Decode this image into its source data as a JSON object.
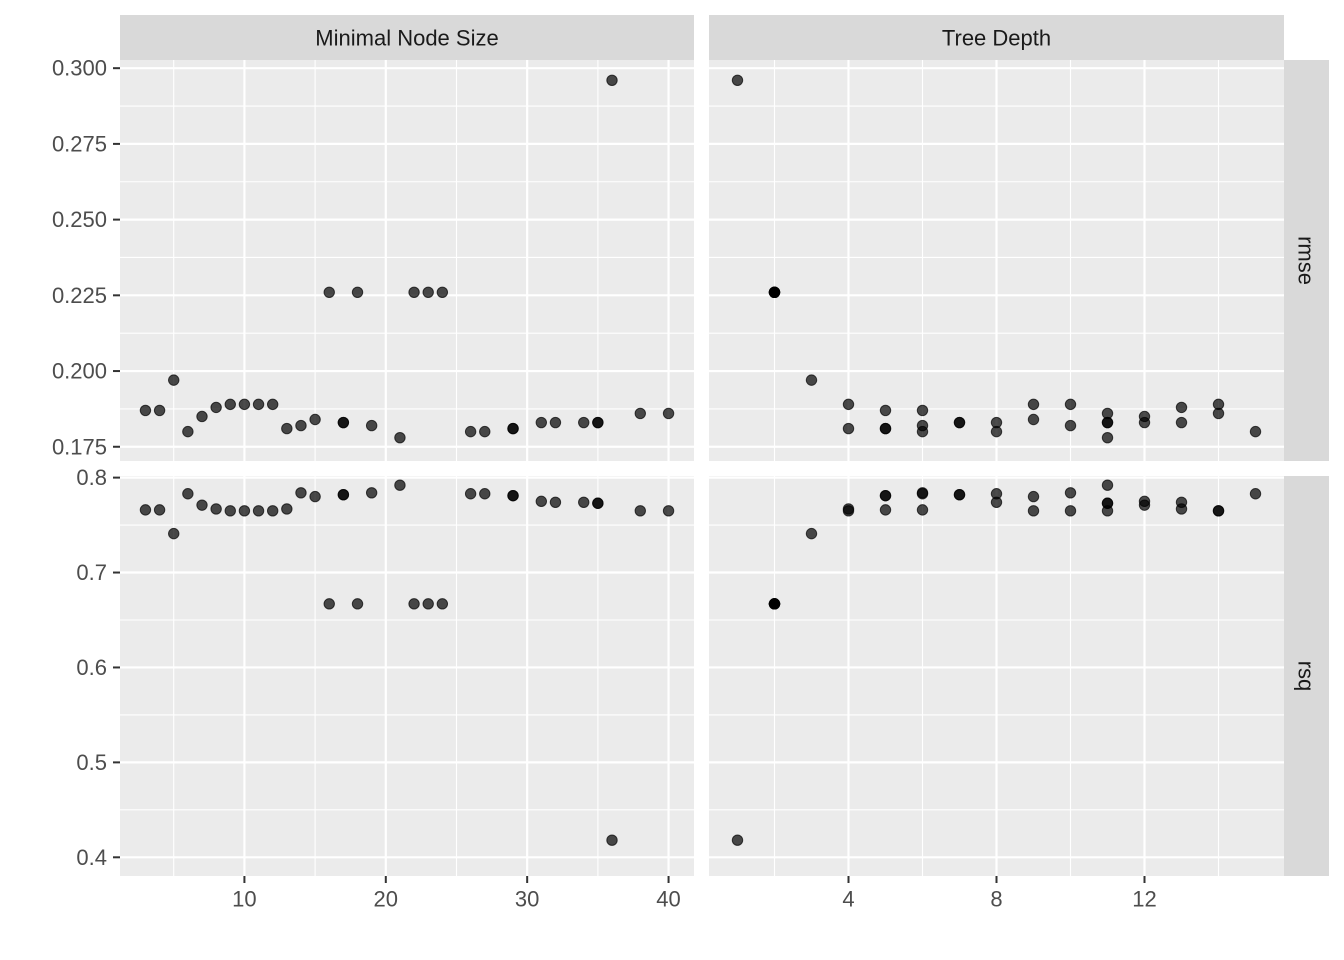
{
  "chart_data": {
    "type": "scatter",
    "layout": "facet-grid",
    "title": "",
    "xlabel": "",
    "ylabel": "",
    "grid": true,
    "columns": [
      {
        "key": "min_n",
        "label": "Minimal Node Size",
        "xlim": [
          1.2,
          41.8
        ],
        "xticks": [
          10,
          20,
          30,
          40
        ]
      },
      {
        "key": "tree_depth",
        "label": "Tree Depth",
        "xlim": [
          0.23,
          15.77
        ],
        "xticks": [
          4,
          8,
          12
        ]
      }
    ],
    "rows": [
      {
        "key": "rmse",
        "label": "rmse",
        "ylim": [
          0.1703,
          0.3027
        ],
        "yticks": [
          0.175,
          0.2,
          0.225,
          0.25,
          0.275,
          0.3
        ],
        "ytick_labels": [
          "0.175",
          "0.200",
          "0.225",
          "0.250",
          "0.275",
          "0.300"
        ]
      },
      {
        "key": "rsq",
        "label": "rsq",
        "ylim": [
          0.3803,
          0.8017
        ],
        "yticks": [
          0.4,
          0.5,
          0.6,
          0.7,
          0.8
        ],
        "ytick_labels": [
          "0.4",
          "0.5",
          "0.6",
          "0.7",
          "0.8"
        ]
      }
    ],
    "models": [
      {
        "min_n": 3,
        "tree_depth": 5,
        "rmse": 0.187,
        "rsq": 0.766
      },
      {
        "min_n": 4,
        "tree_depth": 6,
        "rmse": 0.187,
        "rsq": 0.766
      },
      {
        "min_n": 5,
        "tree_depth": 3,
        "rmse": 0.197,
        "rsq": 0.741
      },
      {
        "min_n": 7,
        "tree_depth": 12,
        "rmse": 0.185,
        "rsq": 0.771
      },
      {
        "min_n": 8,
        "tree_depth": 13,
        "rmse": 0.188,
        "rsq": 0.767
      },
      {
        "min_n": 9,
        "tree_depth": 14,
        "rmse": 0.189,
        "rsq": 0.765
      },
      {
        "min_n": 10,
        "tree_depth": 9,
        "rmse": 0.189,
        "rsq": 0.765
      },
      {
        "min_n": 11,
        "tree_depth": 10,
        "rmse": 0.189,
        "rsq": 0.765
      },
      {
        "min_n": 12,
        "tree_depth": 4,
        "rmse": 0.189,
        "rsq": 0.765
      },
      {
        "min_n": 14,
        "tree_depth": 6,
        "rmse": 0.182,
        "rsq": 0.784
      },
      {
        "min_n": 15,
        "tree_depth": 9,
        "rmse": 0.184,
        "rsq": 0.78
      },
      {
        "min_n": 17,
        "tree_depth": 7,
        "rmse": 0.183,
        "rsq": 0.782
      },
      {
        "min_n": 17,
        "tree_depth": 7,
        "rmse": 0.183,
        "rsq": 0.782
      },
      {
        "min_n": 19,
        "tree_depth": 10,
        "rmse": 0.182,
        "rsq": 0.784
      },
      {
        "min_n": 21,
        "tree_depth": 11,
        "rmse": 0.178,
        "rsq": 0.792
      },
      {
        "min_n": 22,
        "tree_depth": 2,
        "rmse": 0.226,
        "rsq": 0.667
      },
      {
        "min_n": 23,
        "tree_depth": 2,
        "rmse": 0.226,
        "rsq": 0.667
      },
      {
        "min_n": 24,
        "tree_depth": 2,
        "rmse": 0.226,
        "rsq": 0.667
      },
      {
        "min_n": 26,
        "tree_depth": 6,
        "rmse": 0.18,
        "rsq": 0.783
      },
      {
        "min_n": 27,
        "tree_depth": 8,
        "rmse": 0.18,
        "rsq": 0.783
      },
      {
        "min_n": 29,
        "tree_depth": 5,
        "rmse": 0.181,
        "rsq": 0.781
      },
      {
        "min_n": 29,
        "tree_depth": 5,
        "rmse": 0.181,
        "rsq": 0.781
      },
      {
        "min_n": 31,
        "tree_depth": 12,
        "rmse": 0.183,
        "rsq": 0.775
      },
      {
        "min_n": 32,
        "tree_depth": 8,
        "rmse": 0.183,
        "rsq": 0.774
      },
      {
        "min_n": 34,
        "tree_depth": 13,
        "rmse": 0.183,
        "rsq": 0.774
      },
      {
        "min_n": 35,
        "tree_depth": 11,
        "rmse": 0.183,
        "rsq": 0.773
      },
      {
        "min_n": 35,
        "tree_depth": 11,
        "rmse": 0.183,
        "rsq": 0.773
      },
      {
        "min_n": 36,
        "tree_depth": 1,
        "rmse": 0.296,
        "rsq": 0.418
      },
      {
        "min_n": 38,
        "tree_depth": 14,
        "rmse": 0.186,
        "rsq": 0.765
      },
      {
        "min_n": 40,
        "tree_depth": 11,
        "rmse": 0.186,
        "rsq": 0.765
      },
      {
        "min_n": 6,
        "tree_depth": 15,
        "rmse": 0.18,
        "rsq": 0.783
      },
      {
        "min_n": 13,
        "tree_depth": 4,
        "rmse": 0.181,
        "rsq": 0.767
      },
      {
        "min_n": 16,
        "tree_depth": 2,
        "rmse": 0.226,
        "rsq": 0.667
      },
      {
        "min_n": 18,
        "tree_depth": 2,
        "rmse": 0.226,
        "rsq": 0.667
      }
    ]
  }
}
